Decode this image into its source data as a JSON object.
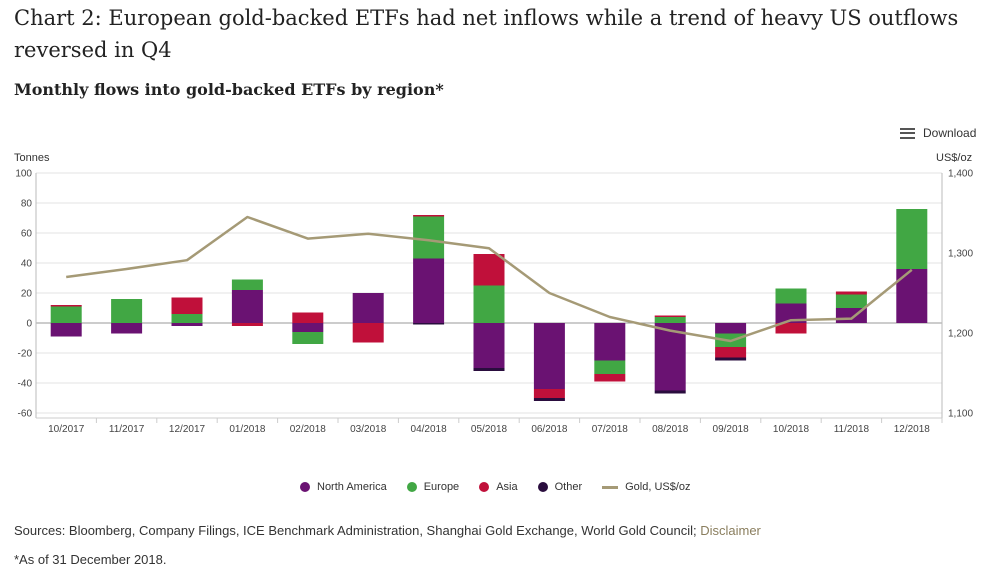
{
  "title": "Chart 2: European gold-backed ETFs had net inflows while a trend of heavy US outflows reversed in Q4",
  "subtitle": "Monthly flows into gold-backed ETFs by region*",
  "download_label": "Download",
  "footer": {
    "sources": "Sources: Bloomberg, Company Filings, ICE Benchmark Administration, Shanghai Gold Exchange, World Gold Council;",
    "disclaimer": "Disclaimer",
    "note": "*As of 31 December 2018."
  },
  "colors": {
    "north_america": "#6a1272",
    "europe": "#41a744",
    "asia": "#c0103a",
    "other": "#2a0d3e",
    "gold": "#a59a76",
    "grid": "#e3e3e3",
    "zero": "#9a9a9a"
  },
  "chart_data": {
    "type": "bar",
    "stacked": true,
    "title": "Chart 2: European gold-backed ETFs had net inflows while a trend of heavy US outflows reversed in Q4",
    "subtitle": "Monthly flows into gold-backed ETFs by region*",
    "ylabel": "Tonnes",
    "y2label": "US$/oz",
    "ylim": [
      -60,
      100
    ],
    "yticks": [
      100,
      80,
      60,
      40,
      20,
      0,
      -20,
      -40,
      -60
    ],
    "y2lim": [
      1100,
      1400
    ],
    "y2ticks": [
      1400,
      1300,
      1200,
      1100
    ],
    "y2tick_labels": [
      "1,400",
      "1,300",
      "1,200",
      "1,100"
    ],
    "grid": true,
    "legend_position": "bottom",
    "categories": [
      "10/2017",
      "11/2017",
      "12/2017",
      "01/2018",
      "02/2018",
      "03/2018",
      "04/2018",
      "05/2018",
      "06/2018",
      "07/2018",
      "08/2018",
      "09/2018",
      "10/2018",
      "11/2018",
      "12/2018"
    ],
    "series": [
      {
        "name": "North America",
        "key": "north_america",
        "values": [
          -9,
          -7,
          -2,
          22,
          -6,
          20,
          43,
          -30,
          -44,
          -25,
          -45,
          -7,
          13,
          10,
          36
        ]
      },
      {
        "name": "Europe",
        "key": "europe",
        "values": [
          11,
          16,
          6,
          7,
          -8,
          0,
          28,
          25,
          0,
          -9,
          4,
          -9,
          10,
          9,
          40
        ]
      },
      {
        "name": "Asia",
        "key": "asia",
        "values": [
          1,
          0,
          11,
          -2,
          7,
          -13,
          1,
          21,
          -6,
          -5,
          1,
          -7,
          -7,
          2,
          0
        ]
      },
      {
        "name": "Other",
        "key": "other",
        "values": [
          0,
          0,
          0,
          0,
          0,
          0,
          -1,
          -2,
          -2,
          0,
          -2,
          -2,
          0,
          0,
          0
        ]
      }
    ],
    "line": {
      "name": "Gold, US$/oz",
      "key": "gold",
      "axis": "right",
      "values": [
        1270,
        1280,
        1291,
        1345,
        1318,
        1324,
        1316,
        1306,
        1250,
        1220,
        1203,
        1190,
        1216,
        1218,
        1279
      ]
    }
  }
}
